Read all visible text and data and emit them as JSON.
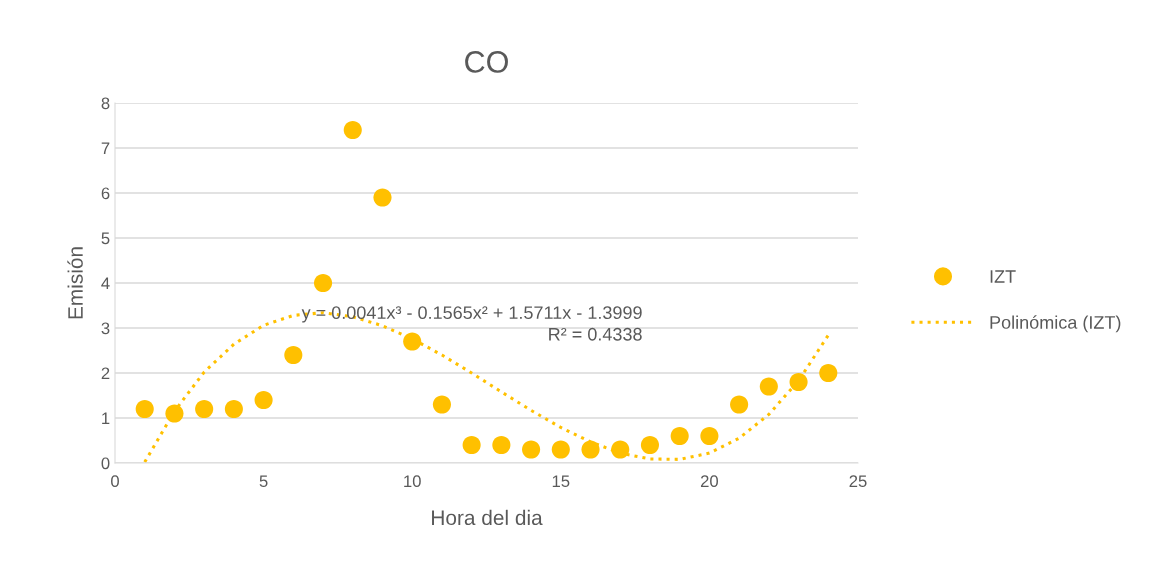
{
  "chart_data": {
    "type": "scatter",
    "title": "CO",
    "xlabel": "Hora del dia",
    "ylabel": "Emisión",
    "xlim": [
      0,
      25
    ],
    "xticks": [
      0,
      5,
      10,
      15,
      20,
      25
    ],
    "ylim": [
      0,
      8
    ],
    "yticks": [
      0,
      1,
      2,
      3,
      4,
      5,
      6,
      7,
      8
    ],
    "grid": "y",
    "legend": "right",
    "series": [
      {
        "name": "IZT",
        "marker": "circle",
        "color": "#ffc000",
        "x": [
          1,
          2,
          3,
          4,
          5,
          6,
          7,
          8,
          9,
          10,
          11,
          12,
          13,
          14,
          15,
          16,
          17,
          18,
          19,
          20,
          21,
          22,
          23,
          24
        ],
        "values": [
          1.2,
          1.1,
          1.2,
          1.2,
          1.4,
          2.4,
          4.0,
          7.4,
          5.9,
          2.7,
          1.3,
          0.4,
          0.4,
          0.3,
          0.3,
          0.3,
          0.3,
          0.4,
          0.6,
          0.6,
          1.3,
          1.7,
          1.8,
          2.0
        ]
      },
      {
        "name": "Polinómica (IZT)",
        "type": "line",
        "line_style": "dotted",
        "color": "#ffc000",
        "x": [
          1,
          2,
          3,
          4,
          5,
          6,
          7,
          8,
          9,
          10,
          11,
          12,
          13,
          14,
          15,
          16,
          17,
          18,
          19,
          20,
          21,
          22,
          23,
          24
        ],
        "values": [
          0.02,
          1.15,
          2.02,
          2.64,
          3.06,
          3.28,
          3.34,
          3.25,
          3.05,
          2.76,
          2.4,
          2.0,
          1.58,
          1.17,
          0.79,
          0.47,
          0.22,
          0.09,
          0.08,
          0.22,
          0.55,
          1.08,
          1.83,
          2.84
        ]
      }
    ],
    "annotations": [
      "y = 0.0041x³ - 0.1565x² + 1.5711x - 1.3999",
      "R² = 0.4338"
    ]
  }
}
